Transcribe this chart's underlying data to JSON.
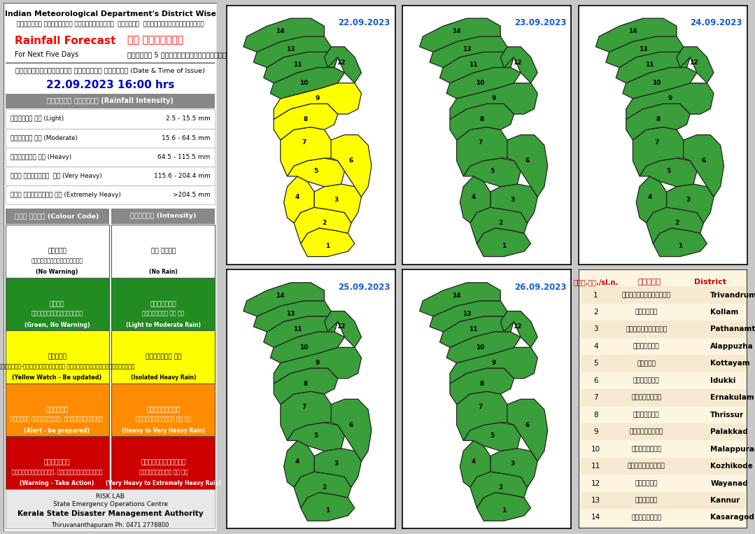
{
  "title_line1": "Indian Meteorological Department's District Wise",
  "title_line2": "ഇന്ത്യൻ കാലാവസ്ഥ വകുപ്പിന്റെ  ജില്ലാ  അടിസ്ഥാനത്തിലുള്ള",
  "rainfall_forecast_en": "Rainfall Forecast",
  "rainfall_forecast_ml": "മഴ പ്രവചനം",
  "for_next_en": "For Next Five Days",
  "for_next_ml": "അടുത്ത 5 ദിവസത്തേക്കുള്ളത്",
  "issue_label": "പുറപ്പെടുവിച്ച ദിവസവും സമയവും (Date & Time of Issue)",
  "issue_date": "22.09.2023 16:00 hrs",
  "intensity_header": "മഴയുടെ തീവ്രത (Rainfall Intensity)",
  "intensities": [
    [
      "ചാറ്റൽ മഴ (Light)",
      "2.5 - 15.5 mm"
    ],
    [
      "മിതമായ മഴ (Moderate)",
      "15.6 - 64.5 mm"
    ],
    [
      "ശക്തമായ മഴ (Heavy)",
      "64.5 - 115.5 mm"
    ],
    [
      "അതി ശക്തമായ  മഴ (Very Heavy)",
      "115.6 - 204.4 mm"
    ],
    [
      "അതി തീവ്രമായ മഴ (Extremely Heavy)",
      ">204.5 mm"
    ]
  ],
  "colour_code_header": "കളർ കോഡ് (Colour Code)",
  "intensity_header2": "തീവ്രത (Intensity)",
  "colour_rows": [
    {
      "bg": "#ffffff",
      "text_ml": "വെള്ള",
      "text_ml2": "മുന്നറിയിപ്പില്ല",
      "text_en": "(No Warning)",
      "intensity_ml": "മഴ ഇല്ല",
      "intensity_ml2": "",
      "intensity_en": "(No Rain)"
    },
    {
      "bg": "#228B22",
      "text_ml": "പച്ച",
      "text_ml2": "മുന്നറിയിപ്പില്ല",
      "text_en": "(Green, No Warning)",
      "intensity_ml": "നേരിയതോ",
      "intensity_ml2": "മിതമായതോ ആയ മഴ",
      "intensity_en": "(Light to Moderate Rain)"
    },
    {
      "bg": "#ffff00",
      "text_ml": "മഞ്ഞൾ",
      "text_ml2": "നിരീക്ഷിക്കുക-മുന്നറിയിപ്പ് പുതുക്കികൊണ്ടിരിക്കുക",
      "text_en": "(Yellow Watch - Be updated)",
      "intensity_ml": "ശക്തമായ മഴ",
      "intensity_ml2": "",
      "intensity_en": "(Isolated Heavy Rain)"
    },
    {
      "bg": "#ff8c00",
      "text_ml": "ഓറഞ്ച്",
      "text_ml2": "ജാഗ്രത പാലിക്കുക, കരുതിരിക്കുക",
      "text_en": "(Alert - be prepared)",
      "intensity_ml": "ശക്തമായതോ",
      "intensity_ml2": "അതിശക്തമായതോ ആയ മഴ",
      "intensity_en": "(Heavy to Very Heavy Rain)"
    },
    {
      "bg": "#cc0000",
      "text_ml": "ചുവപ്പ്",
      "text_ml2": "മുന്നറിയിപ്പ്, പ്രവർത്തിക്കുക",
      "text_en": "(Warning - Take Action)",
      "intensity_ml": "അതിശക്തമായതോ",
      "intensity_ml2": "തീവ്രമായതോ ആയ മഴ",
      "intensity_en": "(Very Heavy to Extremely Heavy Rain)"
    }
  ],
  "dates": [
    "22.09.2023",
    "23.09.2023",
    "24.09.2023",
    "25.09.2023",
    "26.09.2023"
  ],
  "yellow_districts_22": [
    1,
    2,
    3,
    4,
    5,
    6,
    7,
    8,
    9
  ],
  "districts": [
    {
      "num": 1,
      "ml": "തിരുവനന്തപുരം",
      "en": "Trivandrum"
    },
    {
      "num": 2,
      "ml": "കൊല്ലം",
      "en": "Kollam"
    },
    {
      "num": 3,
      "ml": "പത്ഥനംതിട്ട",
      "en": "Pathanamthitta"
    },
    {
      "num": 4,
      "ml": "ആലപ്പുഴ",
      "en": "Alappuzha"
    },
    {
      "num": 5,
      "ml": "കോടയം",
      "en": "Kottayam"
    },
    {
      "num": 6,
      "ml": "ഇടുക്കി",
      "en": "Idukki"
    },
    {
      "num": 7,
      "ml": "എറണാകുളം",
      "en": "Ernakulam"
    },
    {
      "num": 8,
      "ml": "തൃശ്ശൂർ",
      "en": "Thrissur"
    },
    {
      "num": 9,
      "ml": "പാലക്കാട്",
      "en": "Palakkad"
    },
    {
      "num": 10,
      "ml": "മലപ്പുറം",
      "en": "Malappuram"
    },
    {
      "num": 11,
      "ml": "കോഴിക്കോട്",
      "en": "Kozhikode"
    },
    {
      "num": 12,
      "ml": "വയനാട്",
      "en": "Wayanad"
    },
    {
      "num": 13,
      "ml": "കണ്ണൂർ",
      "en": "Kannur"
    },
    {
      "num": 14,
      "ml": "കാസരഗ൏ഡ൏",
      "en": "Kasaragod"
    }
  ],
  "district_table_header": [
    "ക്ര.നം./sl.n.",
    "ജില്ല",
    "District"
  ],
  "footer_risk": "RISK LAB",
  "footer_org": "State Emergency Operations Centre",
  "footer_auth": "Kerala State Disaster Management Authority",
  "footer_phone": "Thiruvananthapuram Ph: 0471 2778800",
  "map_green": "#3a9e3a",
  "map_yellow": "#FFFF00",
  "map_dark_green": "#228B22"
}
